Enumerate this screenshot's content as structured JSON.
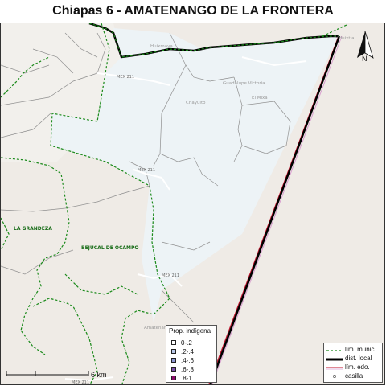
{
  "title": "Chiapas 6 - AMATENANGO DE LA FRONTERA",
  "map": {
    "place_labels": [
      {
        "text": "Huixtla"
      },
      {
        "text": "Huixmaya"
      },
      {
        "text": "Guadalupe Victoria"
      },
      {
        "text": "Chayuito"
      },
      {
        "text": "El Mixa"
      },
      {
        "text": "Amatenango"
      }
    ],
    "municipality_labels": {
      "la_grandeza": "LA GRANDEZA",
      "bejucal": "BEJUCAL DE OCAMPO"
    },
    "road_labels": [
      "MEX 211",
      "MEX 211",
      "MEX 211",
      "MEX 211"
    ],
    "colors": {
      "district_fill": "#edf3f6",
      "municipal_line": "#1a8a1a",
      "district_line": "#000000",
      "state_line": "#c0102a",
      "background": "#efebe6"
    }
  },
  "legend_indigena": {
    "title": "Prop. indígena",
    "items": [
      {
        "label": "0-.2",
        "color": "#ffffff"
      },
      {
        "label": ".2-.4",
        "color": "#b9c8e8"
      },
      {
        "label": ".4-.6",
        "color": "#8d97d1"
      },
      {
        "label": ".6-.8",
        "color": "#7a4fa8"
      },
      {
        "label": ".8-1",
        "color": "#8a0c6a"
      }
    ]
  },
  "legend_lines": {
    "items": [
      {
        "label": "lím. munic."
      },
      {
        "label": "dist. local"
      },
      {
        "label": "lím. edo."
      },
      {
        "label": "casilla"
      }
    ]
  },
  "north_arrow": {
    "label": "N"
  },
  "scale_bar": {
    "label": "6 km"
  }
}
